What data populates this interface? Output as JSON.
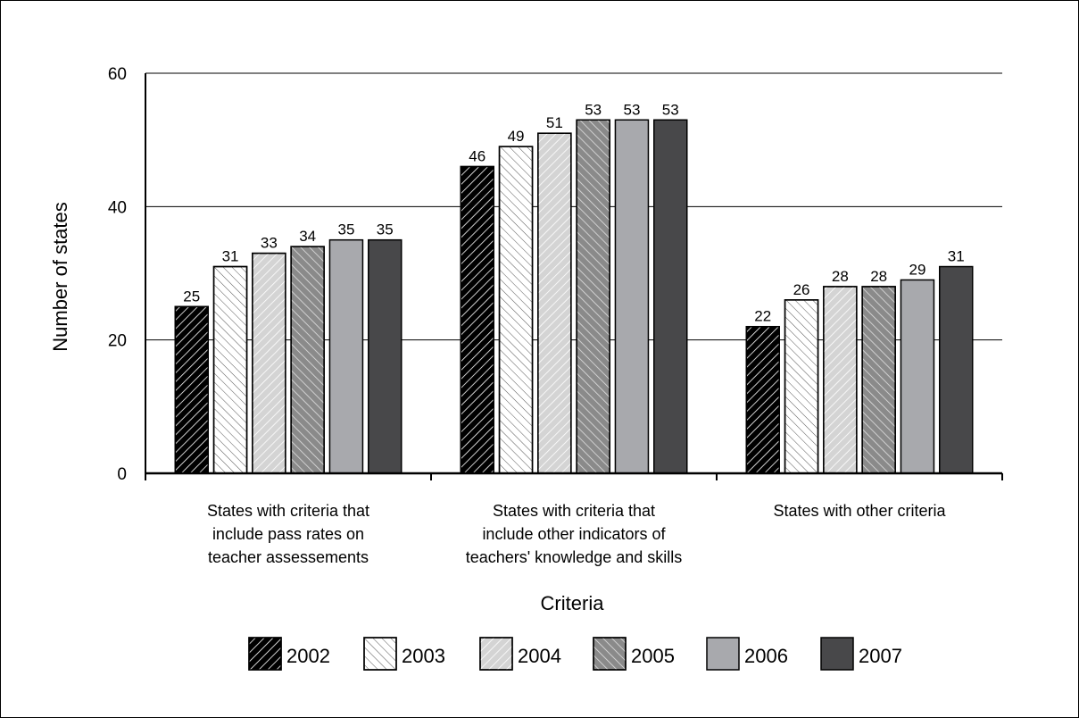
{
  "chart_data": {
    "type": "bar",
    "title": "",
    "xlabel": "Criteria",
    "ylabel": "Number of states",
    "ylim": [
      0,
      60
    ],
    "yticks": [
      0,
      20,
      40,
      60
    ],
    "grid": "horizontal",
    "legend_position": "bottom",
    "categories": [
      [
        "States with criteria that",
        "include pass rates on",
        "teacher assessements"
      ],
      [
        "States with criteria that",
        "include other indicators of",
        "teachers' knowledge and skills"
      ],
      [
        "States with other criteria"
      ]
    ],
    "series": [
      {
        "name": "2002",
        "values": [
          25,
          46,
          22
        ],
        "fill": "#000000",
        "pattern": "hatch-fwd-white"
      },
      {
        "name": "2003",
        "values": [
          31,
          49,
          26
        ],
        "fill": "#ffffff",
        "pattern": "hatch-back-dark"
      },
      {
        "name": "2004",
        "values": [
          33,
          51,
          28
        ],
        "fill": "#d4d4d4",
        "pattern": "hatch-fwd-white"
      },
      {
        "name": "2005",
        "values": [
          34,
          53,
          28
        ],
        "fill": "#8a8a8a",
        "pattern": "hatch-back-white"
      },
      {
        "name": "2006",
        "values": [
          35,
          53,
          29
        ],
        "fill": "#a8a9ad",
        "pattern": "solid"
      },
      {
        "name": "2007",
        "values": [
          35,
          53,
          31
        ],
        "fill": "#48484a",
        "pattern": "solid"
      }
    ]
  }
}
